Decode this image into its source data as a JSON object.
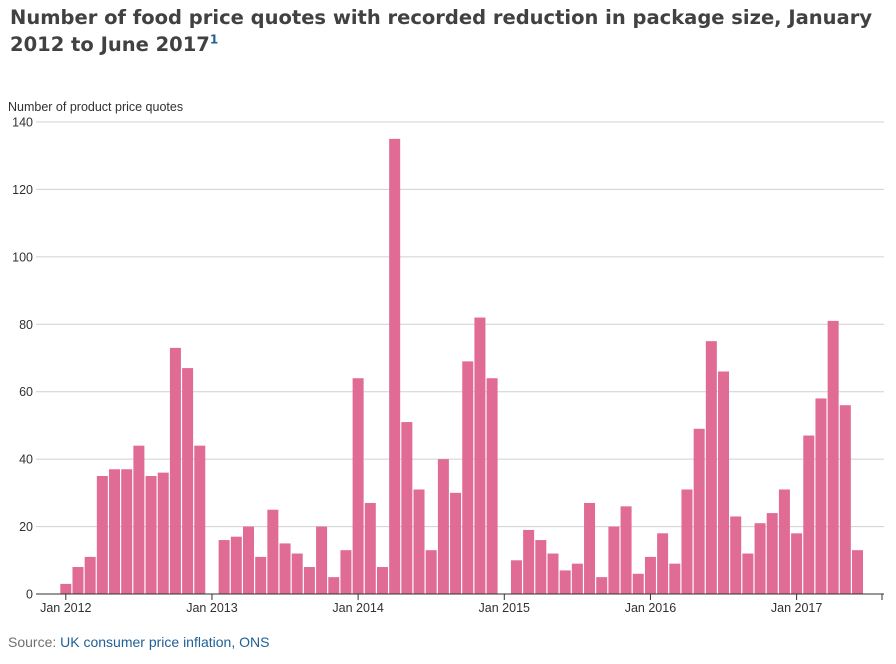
{
  "title": "Number of food price quotes with recorded reduction in package size, January 2012 to June 2017",
  "title_footnote": "1",
  "source_prefix": "Source: ",
  "source_link_text": "UK consumer price inflation, ONS",
  "colors": {
    "bar": "#e06b94",
    "grid": "#d0d0d0",
    "axis": "#323132",
    "link": "#206095"
  },
  "chart_data": {
    "type": "bar",
    "title": "Number of food price quotes with recorded reduction in package size, January 2012 to June 2017",
    "ylabel": "Number of product price quotes",
    "xlabel": "",
    "ylim": [
      0,
      140
    ],
    "yticks": [
      0,
      20,
      40,
      60,
      80,
      100,
      120,
      140
    ],
    "xtick_labels": [
      "Jan 2012",
      "Jan 2013",
      "Jan 2014",
      "Jan 2015",
      "Jan 2016",
      "Jan 2017"
    ],
    "categories": [
      "Jan 2012",
      "Feb 2012",
      "Mar 2012",
      "Apr 2012",
      "May 2012",
      "Jun 2012",
      "Jul 2012",
      "Aug 2012",
      "Sep 2012",
      "Oct 2012",
      "Nov 2012",
      "Dec 2012",
      "Jan 2013",
      "Feb 2013",
      "Mar 2013",
      "Apr 2013",
      "May 2013",
      "Jun 2013",
      "Jul 2013",
      "Aug 2013",
      "Sep 2013",
      "Oct 2013",
      "Nov 2013",
      "Dec 2013",
      "Jan 2014",
      "Feb 2014",
      "Mar 2014",
      "Apr 2014",
      "May 2014",
      "Jun 2014",
      "Jul 2014",
      "Aug 2014",
      "Sep 2014",
      "Oct 2014",
      "Nov 2014",
      "Dec 2014",
      "Jan 2015",
      "Feb 2015",
      "Mar 2015",
      "Apr 2015",
      "May 2015",
      "Jun 2015",
      "Jul 2015",
      "Aug 2015",
      "Sep 2015",
      "Oct 2015",
      "Nov 2015",
      "Dec 2015",
      "Jan 2016",
      "Feb 2016",
      "Mar 2016",
      "Apr 2016",
      "May 2016",
      "Jun 2016",
      "Jul 2016",
      "Aug 2016",
      "Sep 2016",
      "Oct 2016",
      "Nov 2016",
      "Dec 2016",
      "Jan 2017",
      "Feb 2017",
      "Mar 2017",
      "Apr 2017",
      "May 2017",
      "Jun 2017"
    ],
    "values": [
      3,
      8,
      11,
      35,
      37,
      37,
      44,
      35,
      36,
      73,
      67,
      44,
      0,
      16,
      17,
      20,
      11,
      25,
      15,
      12,
      8,
      20,
      5,
      13,
      64,
      27,
      8,
      135,
      51,
      31,
      13,
      40,
      30,
      69,
      82,
      64,
      0,
      10,
      19,
      16,
      12,
      7,
      9,
      27,
      5,
      20,
      26,
      6,
      11,
      18,
      9,
      31,
      49,
      75,
      66,
      23,
      12,
      21,
      24,
      31,
      18,
      47,
      58,
      81,
      56,
      13
    ],
    "grid": true
  }
}
